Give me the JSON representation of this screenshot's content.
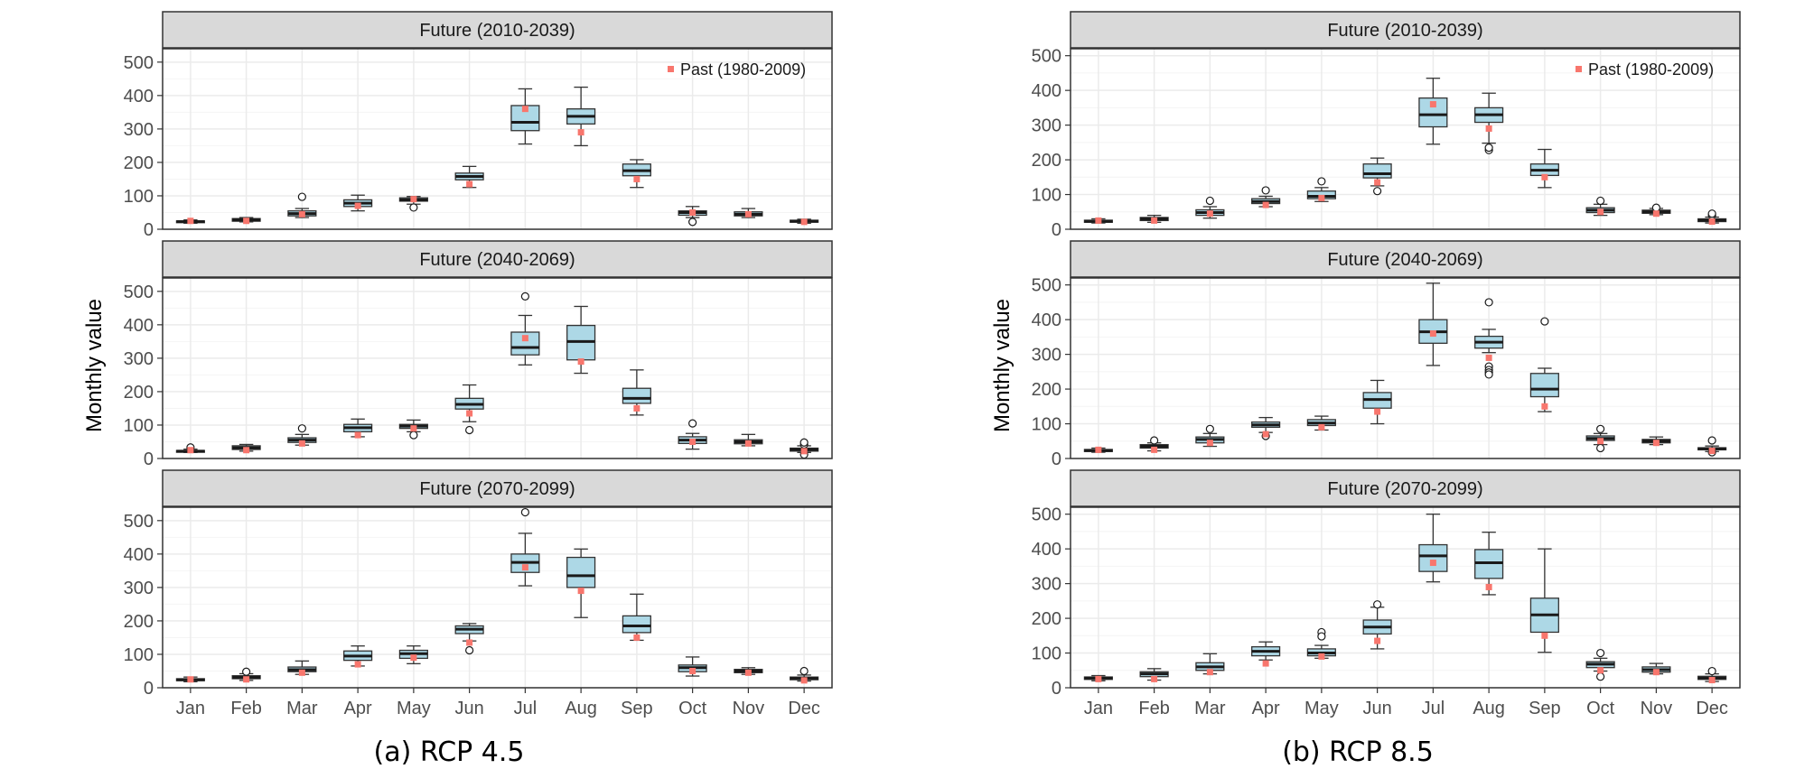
{
  "colors": {
    "box_fill": "#add8e6",
    "box_stroke": "#333333",
    "past_marker": "#f8766d",
    "strip_fill": "#d9d9d9",
    "grid": "#ebebeb"
  },
  "chart_data": [
    {
      "type": "box",
      "caption": "(a) RCP 4.5",
      "ylabel": "Monthly value",
      "legend_label": "Past (1980-2009)",
      "legend_position": "top-right",
      "categories": [
        "Jan",
        "Feb",
        "Mar",
        "Apr",
        "May",
        "Jun",
        "Jul",
        "Aug",
        "Sep",
        "Oct",
        "Nov",
        "Dec"
      ],
      "ylim": [
        0,
        540
      ],
      "yticks": [
        0,
        100,
        200,
        300,
        400,
        500
      ],
      "grid": true,
      "past": [
        25,
        25,
        45,
        70,
        90,
        135,
        360,
        290,
        150,
        50,
        45,
        22
      ],
      "panels": [
        {
          "title": "Future (2010-2039)",
          "boxes": [
            {
              "min": 18,
              "q1": 20,
              "med": 23,
              "q3": 25,
              "max": 28,
              "out": []
            },
            {
              "min": 22,
              "q1": 24,
              "med": 28,
              "q3": 32,
              "max": 35,
              "out": []
            },
            {
              "min": 35,
              "q1": 40,
              "med": 47,
              "q3": 55,
              "max": 62,
              "out": [
                97
              ]
            },
            {
              "min": 55,
              "q1": 68,
              "med": 78,
              "q3": 88,
              "max": 102,
              "out": []
            },
            {
              "min": 75,
              "q1": 84,
              "med": 88,
              "q3": 94,
              "max": 98,
              "out": [
                65
              ]
            },
            {
              "min": 125,
              "q1": 148,
              "med": 158,
              "q3": 168,
              "max": 188,
              "out": []
            },
            {
              "min": 255,
              "q1": 295,
              "med": 320,
              "q3": 370,
              "max": 420,
              "out": []
            },
            {
              "min": 250,
              "q1": 315,
              "med": 338,
              "q3": 360,
              "max": 425,
              "out": []
            },
            {
              "min": 125,
              "q1": 160,
              "med": 175,
              "q3": 195,
              "max": 208,
              "out": []
            },
            {
              "min": 35,
              "q1": 42,
              "med": 50,
              "q3": 55,
              "max": 68,
              "out": [
                22
              ]
            },
            {
              "min": 35,
              "q1": 40,
              "med": 45,
              "q3": 52,
              "max": 62,
              "out": []
            },
            {
              "min": 18,
              "q1": 21,
              "med": 24,
              "q3": 27,
              "max": 30,
              "out": []
            }
          ]
        },
        {
          "title": "Future (2040-2069)",
          "boxes": [
            {
              "min": 18,
              "q1": 20,
              "med": 22,
              "q3": 24,
              "max": 28,
              "out": [
                33
              ]
            },
            {
              "min": 22,
              "q1": 27,
              "med": 32,
              "q3": 38,
              "max": 42,
              "out": []
            },
            {
              "min": 40,
              "q1": 48,
              "med": 55,
              "q3": 62,
              "max": 72,
              "out": [
                90
              ]
            },
            {
              "min": 65,
              "q1": 80,
              "med": 92,
              "q3": 102,
              "max": 118,
              "out": []
            },
            {
              "min": 80,
              "q1": 90,
              "med": 97,
              "q3": 102,
              "max": 115,
              "out": [
                70
              ]
            },
            {
              "min": 110,
              "q1": 148,
              "med": 162,
              "q3": 180,
              "max": 220,
              "out": [
                85
              ]
            },
            {
              "min": 280,
              "q1": 310,
              "med": 332,
              "q3": 378,
              "max": 428,
              "out": [
                485
              ]
            },
            {
              "min": 255,
              "q1": 295,
              "med": 350,
              "q3": 398,
              "max": 455,
              "out": []
            },
            {
              "min": 130,
              "q1": 165,
              "med": 180,
              "q3": 210,
              "max": 265,
              "out": []
            },
            {
              "min": 28,
              "q1": 45,
              "med": 55,
              "q3": 65,
              "max": 75,
              "out": [
                105
              ]
            },
            {
              "min": 38,
              "q1": 44,
              "med": 50,
              "q3": 56,
              "max": 72,
              "out": []
            },
            {
              "min": 18,
              "q1": 22,
              "med": 27,
              "q3": 31,
              "max": 38,
              "out": [
                12,
                42,
                48
              ]
            }
          ]
        },
        {
          "title": "Future (2070-2099)",
          "boxes": [
            {
              "min": 18,
              "q1": 21,
              "med": 24,
              "q3": 27,
              "max": 32,
              "out": []
            },
            {
              "min": 22,
              "q1": 27,
              "med": 31,
              "q3": 36,
              "max": 42,
              "out": [
                48
              ]
            },
            {
              "min": 40,
              "q1": 48,
              "med": 54,
              "q3": 62,
              "max": 80,
              "out": []
            },
            {
              "min": 65,
              "q1": 82,
              "med": 95,
              "q3": 110,
              "max": 125,
              "out": []
            },
            {
              "min": 72,
              "q1": 88,
              "med": 102,
              "q3": 112,
              "max": 125,
              "out": []
            },
            {
              "min": 140,
              "q1": 162,
              "med": 175,
              "q3": 185,
              "max": 192,
              "out": [
                112
              ]
            },
            {
              "min": 305,
              "q1": 345,
              "med": 375,
              "q3": 400,
              "max": 462,
              "out": [
                525
              ]
            },
            {
              "min": 210,
              "q1": 300,
              "med": 335,
              "q3": 390,
              "max": 415,
              "out": []
            },
            {
              "min": 142,
              "q1": 165,
              "med": 185,
              "q3": 215,
              "max": 280,
              "out": []
            },
            {
              "min": 35,
              "q1": 48,
              "med": 60,
              "q3": 68,
              "max": 92,
              "out": []
            },
            {
              "min": 40,
              "q1": 45,
              "med": 50,
              "q3": 55,
              "max": 60,
              "out": []
            },
            {
              "min": 20,
              "q1": 24,
              "med": 28,
              "q3": 32,
              "max": 38,
              "out": [
                50
              ]
            }
          ]
        }
      ]
    },
    {
      "type": "box",
      "caption": "(b) RCP 8.5",
      "ylabel": "Monthly value",
      "legend_label": "Past (1980-2009)",
      "legend_position": "top-right",
      "categories": [
        "Jan",
        "Feb",
        "Mar",
        "Apr",
        "May",
        "Jun",
        "Jul",
        "Aug",
        "Sep",
        "Oct",
        "Nov",
        "Dec"
      ],
      "ylim": [
        0,
        520
      ],
      "yticks": [
        0,
        100,
        200,
        300,
        400,
        500
      ],
      "grid": true,
      "past": [
        25,
        25,
        45,
        70,
        90,
        135,
        360,
        290,
        150,
        50,
        45,
        22
      ],
      "panels": [
        {
          "title": "Future (2010-2039)",
          "boxes": [
            {
              "min": 18,
              "q1": 20,
              "med": 23,
              "q3": 26,
              "max": 30,
              "out": []
            },
            {
              "min": 20,
              "q1": 25,
              "med": 30,
              "q3": 34,
              "max": 40,
              "out": []
            },
            {
              "min": 32,
              "q1": 40,
              "med": 48,
              "q3": 56,
              "max": 65,
              "out": [
                82
              ]
            },
            {
              "min": 65,
              "q1": 74,
              "med": 80,
              "q3": 88,
              "max": 95,
              "out": [
                112
              ]
            },
            {
              "min": 80,
              "q1": 88,
              "med": 95,
              "q3": 110,
              "max": 120,
              "out": [
                138
              ]
            },
            {
              "min": 125,
              "q1": 148,
              "med": 160,
              "q3": 188,
              "max": 205,
              "out": [
                110
              ]
            },
            {
              "min": 245,
              "q1": 295,
              "med": 330,
              "q3": 378,
              "max": 435,
              "out": []
            },
            {
              "min": 248,
              "q1": 308,
              "med": 330,
              "q3": 350,
              "max": 392,
              "out": [
                228,
                235
              ]
            },
            {
              "min": 120,
              "q1": 155,
              "med": 170,
              "q3": 188,
              "max": 230,
              "out": []
            },
            {
              "min": 40,
              "q1": 48,
              "med": 55,
              "q3": 62,
              "max": 72,
              "out": [
                82
              ]
            },
            {
              "min": 42,
              "q1": 46,
              "med": 50,
              "q3": 55,
              "max": 60,
              "out": [
                62
              ]
            },
            {
              "min": 18,
              "q1": 22,
              "med": 26,
              "q3": 30,
              "max": 35,
              "out": [
                40,
                45
              ]
            }
          ]
        },
        {
          "title": "Future (2040-2069)",
          "boxes": [
            {
              "min": 18,
              "q1": 20,
              "med": 23,
              "q3": 26,
              "max": 30,
              "out": []
            },
            {
              "min": 22,
              "q1": 30,
              "med": 35,
              "q3": 40,
              "max": 45,
              "out": [
                52
              ]
            },
            {
              "min": 35,
              "q1": 45,
              "med": 55,
              "q3": 62,
              "max": 72,
              "out": [
                85
              ]
            },
            {
              "min": 75,
              "q1": 90,
              "med": 97,
              "q3": 105,
              "max": 118,
              "out": [
                65
              ]
            },
            {
              "min": 82,
              "q1": 95,
              "med": 102,
              "q3": 112,
              "max": 122,
              "out": []
            },
            {
              "min": 100,
              "q1": 145,
              "med": 170,
              "q3": 190,
              "max": 225,
              "out": []
            },
            {
              "min": 268,
              "q1": 332,
              "med": 365,
              "q3": 400,
              "max": 505,
              "out": []
            },
            {
              "min": 305,
              "q1": 318,
              "med": 335,
              "q3": 352,
              "max": 372,
              "out": [
                450,
                265,
                255,
                248,
                242
              ]
            },
            {
              "min": 135,
              "q1": 178,
              "med": 200,
              "q3": 245,
              "max": 260,
              "out": [
                395
              ]
            },
            {
              "min": 40,
              "q1": 52,
              "med": 58,
              "q3": 65,
              "max": 72,
              "out": [
                85,
                30
              ]
            },
            {
              "min": 40,
              "q1": 45,
              "med": 50,
              "q3": 55,
              "max": 62,
              "out": []
            },
            {
              "min": 20,
              "q1": 25,
              "med": 28,
              "q3": 31,
              "max": 36,
              "out": [
                52,
                18
              ]
            }
          ]
        },
        {
          "title": "Future (2070-2099)",
          "boxes": [
            {
              "min": 20,
              "q1": 24,
              "med": 28,
              "q3": 31,
              "max": 35,
              "out": []
            },
            {
              "min": 22,
              "q1": 32,
              "med": 40,
              "q3": 46,
              "max": 55,
              "out": []
            },
            {
              "min": 40,
              "q1": 50,
              "med": 60,
              "q3": 72,
              "max": 98,
              "out": []
            },
            {
              "min": 80,
              "q1": 92,
              "med": 105,
              "q3": 118,
              "max": 132,
              "out": []
            },
            {
              "min": 85,
              "q1": 92,
              "med": 100,
              "q3": 112,
              "max": 122,
              "out": [
                160,
                148
              ]
            },
            {
              "min": 112,
              "q1": 155,
              "med": 175,
              "q3": 195,
              "max": 232,
              "out": [
                240
              ]
            },
            {
              "min": 305,
              "q1": 335,
              "med": 380,
              "q3": 412,
              "max": 500,
              "out": []
            },
            {
              "min": 268,
              "q1": 315,
              "med": 360,
              "q3": 398,
              "max": 448,
              "out": []
            },
            {
              "min": 102,
              "q1": 160,
              "med": 210,
              "q3": 258,
              "max": 400,
              "out": []
            },
            {
              "min": 48,
              "q1": 58,
              "med": 68,
              "q3": 75,
              "max": 85,
              "out": [
                100,
                32
              ]
            },
            {
              "min": 40,
              "q1": 45,
              "med": 52,
              "q3": 60,
              "max": 70,
              "out": []
            },
            {
              "min": 18,
              "q1": 24,
              "med": 28,
              "q3": 33,
              "max": 40,
              "out": [
                48
              ]
            }
          ]
        }
      ]
    }
  ]
}
